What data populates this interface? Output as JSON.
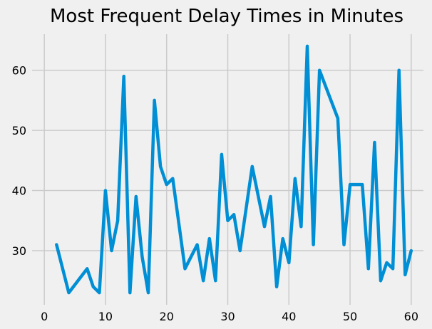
{
  "chart_data": {
    "type": "line",
    "title": "Most Frequent Delay Times in Minutes",
    "xlabel": "",
    "ylabel": "",
    "xlim": [
      -2,
      62
    ],
    "ylim": [
      21,
      66
    ],
    "xticks": [
      0,
      10,
      20,
      30,
      40,
      50,
      60
    ],
    "yticks": [
      30,
      40,
      50,
      60
    ],
    "grid": true,
    "color": "#008fd5",
    "background": "#f0f0f0",
    "grid_color": "#cbcbcb",
    "x": [
      2,
      4,
      7,
      8,
      9,
      10,
      11,
      12,
      13,
      14,
      15,
      16,
      17,
      18,
      19,
      20,
      21,
      23,
      25,
      26,
      27,
      28,
      29,
      30,
      31,
      32,
      34,
      36,
      37,
      38,
      39,
      40,
      41,
      42,
      43,
      44,
      45,
      48,
      49,
      50,
      52,
      53,
      54,
      55,
      56,
      57,
      58,
      59,
      60
    ],
    "y": [
      31,
      23,
      27,
      24,
      23,
      40,
      30,
      35,
      59,
      23,
      39,
      29,
      23,
      55,
      44,
      41,
      42,
      27,
      31,
      25,
      32,
      25,
      46,
      35,
      36,
      30,
      44,
      34,
      39,
      24,
      32,
      28,
      42,
      34,
      64,
      31,
      60,
      52,
      31,
      41,
      41,
      27,
      48,
      25,
      28,
      27,
      60,
      26,
      30
    ]
  }
}
